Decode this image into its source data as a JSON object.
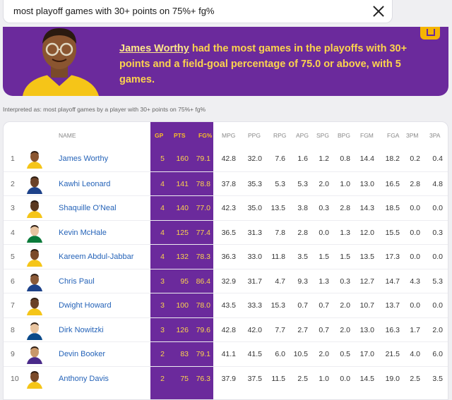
{
  "search": {
    "query": "most playoff games with 30+ points on 75%+ fg%"
  },
  "banner": {
    "name": "James Worthy",
    "text": " had the most games in the playoffs with 30+ points and a field-goal percentage of 75.0 or above, with 5 games."
  },
  "interpreted": "Interpreted as: most playoff games by a player with 30+ points on 75%+ fg%",
  "table": {
    "headers": [
      "NAME",
      "GP",
      "PTS",
      "FG%",
      "MPG",
      "PPG",
      "RPG",
      "APG",
      "SPG",
      "BPG",
      "FGM",
      "FGA",
      "3PM",
      "3PA"
    ],
    "rows": [
      {
        "rank": "1",
        "name": "James Worthy",
        "v": [
          "5",
          "160",
          "79.1",
          "42.8",
          "32.0",
          "7.6",
          "1.6",
          "1.2",
          "0.8",
          "14.4",
          "18.2",
          "0.2",
          "0.4"
        ]
      },
      {
        "rank": "2",
        "name": "Kawhi Leonard",
        "v": [
          "4",
          "141",
          "78.8",
          "37.8",
          "35.3",
          "5.3",
          "5.3",
          "2.0",
          "1.0",
          "13.0",
          "16.5",
          "2.8",
          "4.8"
        ]
      },
      {
        "rank": "3",
        "name": "Shaquille O'Neal",
        "v": [
          "4",
          "140",
          "77.0",
          "42.3",
          "35.0",
          "13.5",
          "3.8",
          "0.3",
          "2.8",
          "14.3",
          "18.5",
          "0.0",
          "0.0"
        ]
      },
      {
        "rank": "4",
        "name": "Kevin McHale",
        "v": [
          "4",
          "125",
          "77.4",
          "36.5",
          "31.3",
          "7.8",
          "2.8",
          "0.0",
          "1.3",
          "12.0",
          "15.5",
          "0.0",
          "0.3"
        ]
      },
      {
        "rank": "5",
        "name": "Kareem Abdul-Jabbar",
        "v": [
          "4",
          "132",
          "78.3",
          "36.3",
          "33.0",
          "11.8",
          "3.5",
          "1.5",
          "1.5",
          "13.5",
          "17.3",
          "0.0",
          "0.0"
        ]
      },
      {
        "rank": "6",
        "name": "Chris Paul",
        "v": [
          "3",
          "95",
          "86.4",
          "32.9",
          "31.7",
          "4.7",
          "9.3",
          "1.3",
          "0.3",
          "12.7",
          "14.7",
          "4.3",
          "5.3"
        ]
      },
      {
        "rank": "7",
        "name": "Dwight Howard",
        "v": [
          "3",
          "100",
          "78.0",
          "43.5",
          "33.3",
          "15.3",
          "0.7",
          "0.7",
          "2.0",
          "10.7",
          "13.7",
          "0.0",
          "0.0"
        ]
      },
      {
        "rank": "8",
        "name": "Dirk Nowitzki",
        "v": [
          "3",
          "126",
          "79.6",
          "42.8",
          "42.0",
          "7.7",
          "2.7",
          "0.7",
          "2.0",
          "13.0",
          "16.3",
          "1.7",
          "2.0"
        ]
      },
      {
        "rank": "9",
        "name": "Devin Booker",
        "v": [
          "2",
          "83",
          "79.1",
          "41.1",
          "41.5",
          "6.0",
          "10.5",
          "2.0",
          "0.5",
          "17.0",
          "21.5",
          "4.0",
          "6.0"
        ]
      },
      {
        "rank": "10",
        "name": "Anthony Davis",
        "v": [
          "2",
          "75",
          "76.3",
          "37.9",
          "37.5",
          "11.5",
          "2.5",
          "1.0",
          "0.0",
          "14.5",
          "19.0",
          "2.5",
          "3.5"
        ]
      }
    ]
  },
  "colors": {
    "accent": "#6b2a9c",
    "highlight": "#fcd34d",
    "link": "#2563b8"
  }
}
